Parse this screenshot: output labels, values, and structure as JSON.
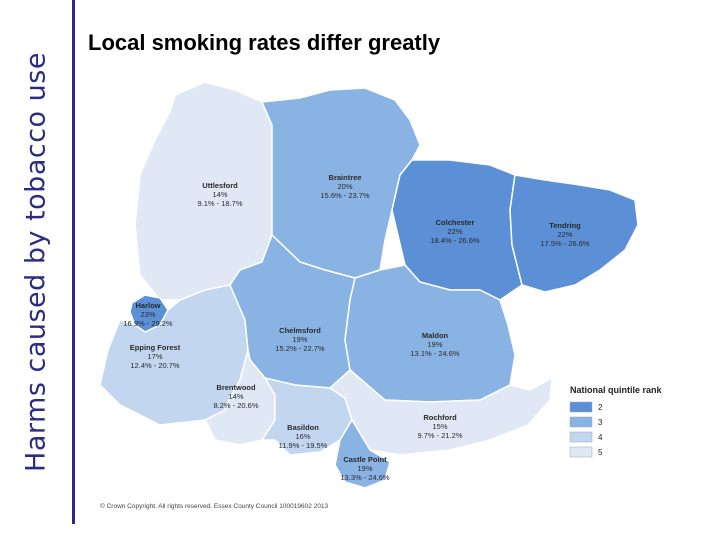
{
  "sidebar": {
    "title": "Harms caused by tobacco use"
  },
  "slide": {
    "title": "Local smoking rates differ greatly"
  },
  "colors": {
    "accent": "#2b2b83",
    "q2": "#5b8fd6",
    "q3": "#89b3e3",
    "q4": "#c3d6ef",
    "q5": "#dfe8f4"
  },
  "districts": [
    {
      "id": "uttlesford",
      "name": "Uttlesford",
      "rate": "14%",
      "range": "9.1% - 18.7%",
      "quintile": 5
    },
    {
      "id": "braintree",
      "name": "Braintree",
      "rate": "20%",
      "range": "15.6% - 23.7%",
      "quintile": 3
    },
    {
      "id": "colchester",
      "name": "Colchester",
      "rate": "22%",
      "range": "18.4% - 26.6%",
      "quintile": 2
    },
    {
      "id": "tendring",
      "name": "Tendring",
      "rate": "22%",
      "range": "17.5% - 26.6%",
      "quintile": 2
    },
    {
      "id": "harlow",
      "name": "Harlow",
      "rate": "23%",
      "range": "16.9% - 29.2%",
      "quintile": 2
    },
    {
      "id": "epping-forest",
      "name": "Epping Forest",
      "rate": "17%",
      "range": "12.4% - 20.7%",
      "quintile": 4
    },
    {
      "id": "chelmsford",
      "name": "Chelmsford",
      "rate": "19%",
      "range": "15.2% - 22.7%",
      "quintile": 3
    },
    {
      "id": "maldon",
      "name": "Maldon",
      "rate": "19%",
      "range": "13.1% - 24.6%",
      "quintile": 3
    },
    {
      "id": "brentwood",
      "name": "Brentwood",
      "rate": "14%",
      "range": "8.2% - 20.6%",
      "quintile": 5
    },
    {
      "id": "basildon",
      "name": "Basildon",
      "rate": "16%",
      "range": "11.9% - 19.5%",
      "quintile": 4
    },
    {
      "id": "rochford",
      "name": "Rochford",
      "rate": "15%",
      "range": "9.7% - 21.2%",
      "quintile": 5
    },
    {
      "id": "castle-point",
      "name": "Castle Point",
      "rate": "19%",
      "range": "13.3% - 24.6%",
      "quintile": 3
    }
  ],
  "legend": {
    "title": "National quintile rank",
    "items": [
      {
        "label": "2",
        "color": "#5b8fd6"
      },
      {
        "label": "3",
        "color": "#89b3e3"
      },
      {
        "label": "4",
        "color": "#c3d6ef"
      },
      {
        "label": "5",
        "color": "#dfe8f4"
      }
    ]
  },
  "copyright": "© Crown Copyright. All rights reserved. Essex County Council 100019602 2013"
}
